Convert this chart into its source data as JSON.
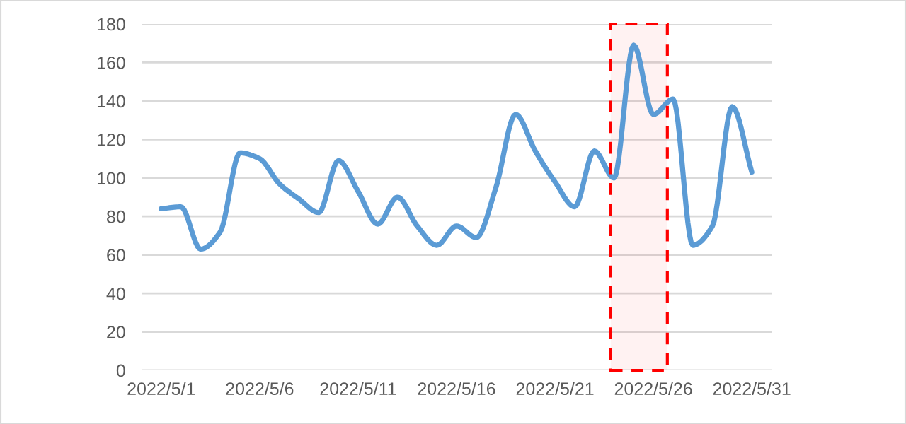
{
  "chart_data": {
    "type": "line",
    "x": [
      "2022-05-01",
      "2022-05-02",
      "2022-05-03",
      "2022-05-04",
      "2022-05-05",
      "2022-05-06",
      "2022-05-07",
      "2022-05-08",
      "2022-05-09",
      "2022-05-10",
      "2022-05-11",
      "2022-05-12",
      "2022-05-13",
      "2022-05-14",
      "2022-05-15",
      "2022-05-16",
      "2022-05-17",
      "2022-05-18",
      "2022-05-19",
      "2022-05-20",
      "2022-05-21",
      "2022-05-22",
      "2022-05-23",
      "2022-05-24",
      "2022-05-25",
      "2022-05-26",
      "2022-05-27",
      "2022-05-28",
      "2022-05-29",
      "2022-05-30",
      "2022-05-31"
    ],
    "series": [
      {
        "color": "#5b9bd5",
        "values": [
          84,
          85,
          63,
          72,
          113,
          110,
          97,
          89,
          82,
          109,
          93,
          76,
          90,
          75,
          65,
          75,
          69,
          95,
          133,
          114,
          98,
          85,
          114,
          100,
          169,
          133,
          141,
          65,
          75,
          137,
          103
        ]
      }
    ],
    "xlim": [
      "2022-04-30",
      "2022-06-01"
    ],
    "xticks": [
      {
        "value": "2022-05-01",
        "label": "2022/5/1"
      },
      {
        "value": "2022-05-06",
        "label": "2022/5/6"
      },
      {
        "value": "2022-05-11",
        "label": "2022/5/11"
      },
      {
        "value": "2022-05-16",
        "label": "2022/5/16"
      },
      {
        "value": "2022-05-21",
        "label": "2022/5/21"
      },
      {
        "value": "2022-05-26",
        "label": "2022/5/26"
      },
      {
        "value": "2022-05-31",
        "label": "2022/5/31"
      }
    ],
    "ylim": [
      0,
      180
    ],
    "yticks": [
      0,
      20,
      40,
      60,
      80,
      100,
      120,
      140,
      160,
      180
    ],
    "grid": "y",
    "marker": "none",
    "line_style": "solid",
    "legend": false,
    "bands": [
      {
        "axis": "x",
        "from": "2022-05-23T20:00",
        "to": "2022-05-26T17:00",
        "color": "#ff0000"
      }
    ]
  }
}
